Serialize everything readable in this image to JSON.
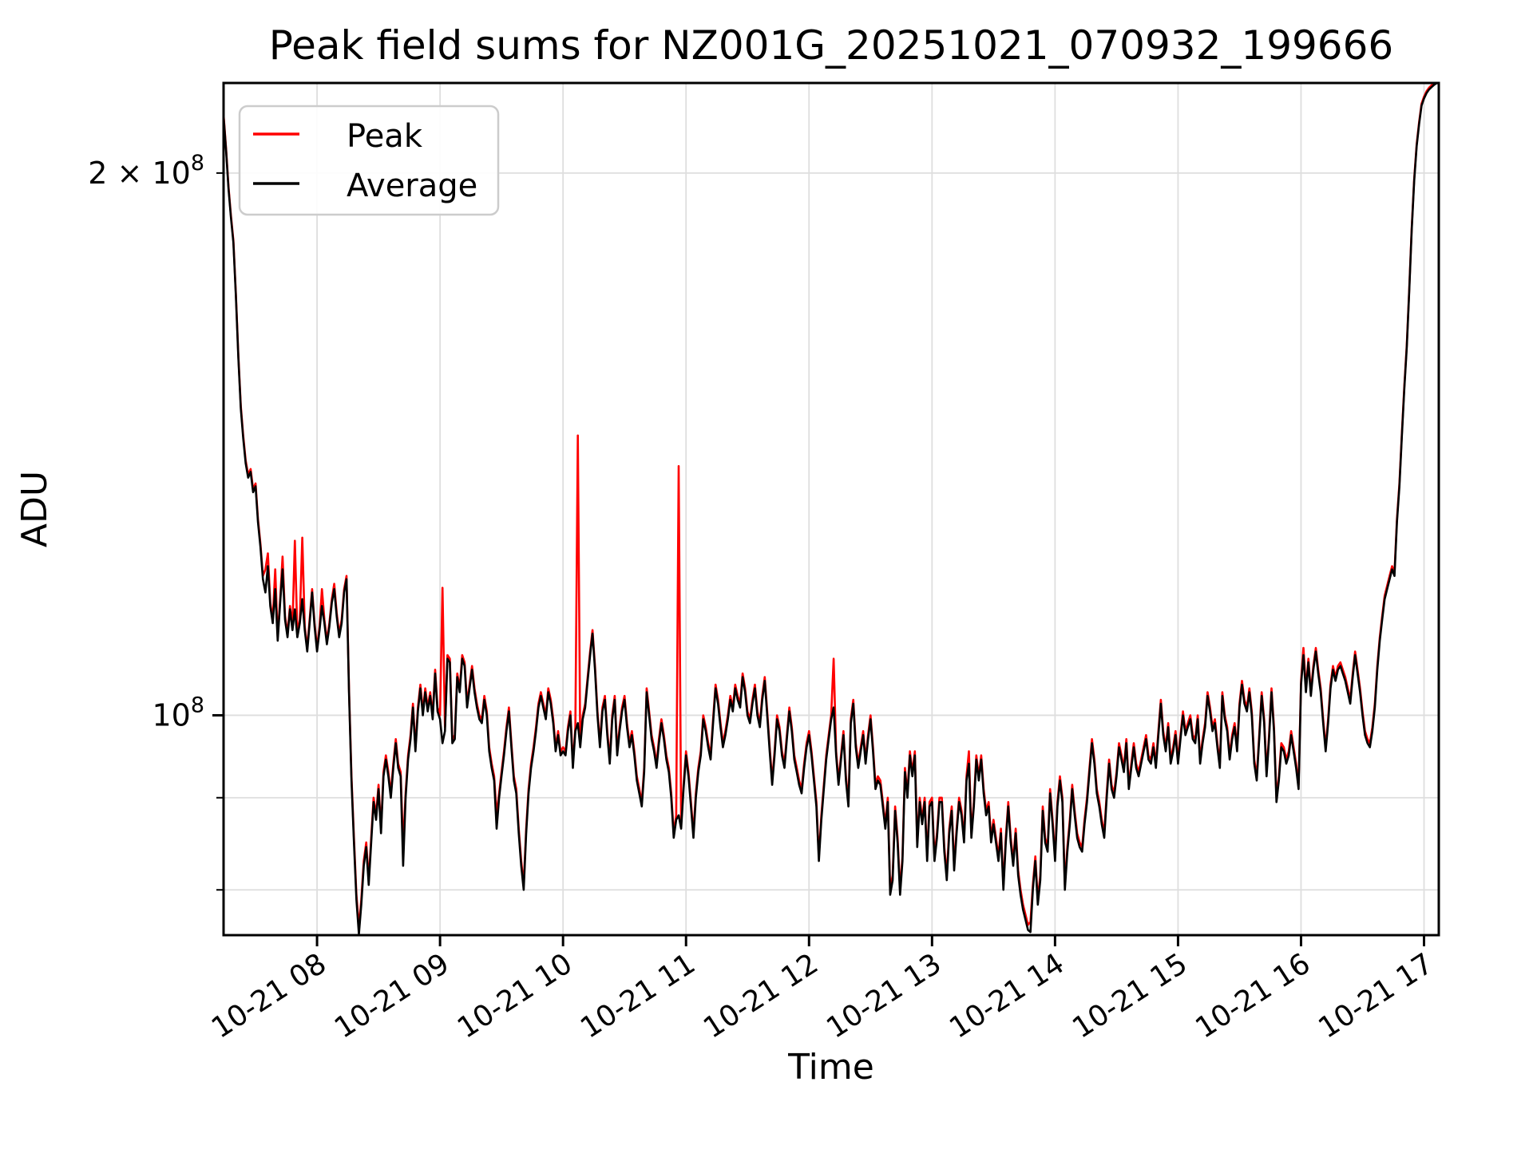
{
  "title": "Peak field sums for NZ001G_20251021_070932_199666",
  "axes": {
    "x_label": "Time",
    "y_label": "ADU"
  },
  "legend": {
    "position": "upper left",
    "items": [
      {
        "label": "Peak",
        "color": "#ff0000"
      },
      {
        "label": "Average",
        "color": "#000000"
      }
    ]
  },
  "colors": {
    "peak": "#ff0000",
    "average": "#000000",
    "grid": "#dedede",
    "spine": "#000000",
    "background": "#ffffff"
  },
  "chart_data": {
    "type": "line",
    "title": "Peak field sums for NZ001G_20251021_070932_199666",
    "xlabel": "Time",
    "ylabel": "ADU",
    "y_scale": "log",
    "grid": true,
    "legend_position": "upper left",
    "value_unit": "ADU",
    "value_scale": 1000000,
    "date": "10-21",
    "xlim_hours": [
      7.24,
      17.12
    ],
    "ylim_millions": [
      75.5,
      224.4
    ],
    "x_ticks": [
      {
        "hour": 8,
        "label": "10-21 08"
      },
      {
        "hour": 9,
        "label": "10-21 09"
      },
      {
        "hour": 10,
        "label": "10-21 10"
      },
      {
        "hour": 11,
        "label": "10-21 11"
      },
      {
        "hour": 12,
        "label": "10-21 12"
      },
      {
        "hour": 13,
        "label": "10-21 13"
      },
      {
        "hour": 14,
        "label": "10-21 14"
      },
      {
        "hour": 15,
        "label": "10-21 15"
      },
      {
        "hour": 16,
        "label": "10-21 16"
      },
      {
        "hour": 17,
        "label": "10-21 17"
      }
    ],
    "y_ticks": [
      {
        "value_millions": 100,
        "prefix": "",
        "base": "10",
        "exp": "8",
        "major": true
      },
      {
        "value_millions": 200,
        "prefix": "2 × ",
        "base": "10",
        "exp": "8",
        "major": false
      }
    ],
    "y_minor_ticks_millions": [
      80,
      90
    ],
    "y_gridlines_millions": [
      80,
      90,
      100,
      200
    ],
    "x_start_hour": 7.24,
    "x_step_hours": 0.02,
    "series": [
      {
        "name": "Peak",
        "color": "#ff0000",
        "values_millions": [
          215.5,
          206.5,
          196.5,
          189.5,
          183.5,
          171.5,
          158.5,
          148.5,
          143,
          138.5,
          136,
          137,
          133.5,
          134.5,
          128.5,
          124.5,
          119.5,
          120.5,
          123,
          115.5,
          113,
          120.5,
          110.5,
          116,
          122.5,
          113.5,
          111,
          115,
          112,
          125,
          111,
          113,
          125.5,
          112,
          109,
          113,
          117.5,
          112.5,
          109,
          112,
          117.5,
          113,
          110,
          112.5,
          116,
          118.3,
          114,
          111,
          113,
          117.5,
          119.5,
          103.5,
          92.5,
          85.5,
          79.5,
          76.3,
          79,
          83,
          85,
          81,
          85.5,
          90,
          88,
          91.5,
          86.5,
          93,
          95,
          93,
          90.5,
          94,
          97,
          94,
          93,
          84.5,
          90.5,
          95,
          97.5,
          101.5,
          96,
          101,
          104,
          100.5,
          103.5,
          101,
          103,
          100,
          106,
          101,
          100,
          117.7,
          98.5,
          108,
          107.5,
          97,
          97.5,
          105.5,
          103.5,
          108,
          107,
          101.5,
          104,
          106.5,
          103.5,
          101.5,
          100,
          99.5,
          102.5,
          100.5,
          96,
          94,
          92.5,
          88,
          90.5,
          93,
          95.5,
          98.5,
          101,
          96.5,
          92.5,
          91,
          86.5,
          83,
          80.5,
          86.5,
          91,
          94,
          96,
          98.5,
          101.5,
          103,
          101.5,
          100,
          103.5,
          102,
          99.5,
          96,
          98,
          95.5,
          96,
          95.5,
          98.5,
          100.5,
          94,
          98.5,
          143,
          96.5,
          100,
          101.5,
          105,
          108.5,
          111.5,
          106.5,
          100.5,
          96.5,
          101,
          102.5,
          98,
          94.5,
          100,
          102.5,
          95.5,
          98.5,
          101,
          102.5,
          99,
          96.5,
          98,
          95.5,
          92.5,
          91,
          89.5,
          93.5,
          103.5,
          100.5,
          97.5,
          96,
          94,
          97,
          99.5,
          97.5,
          95,
          93.5,
          90.5,
          86,
          88,
          137.5,
          87,
          91.5,
          95.5,
          93,
          89.5,
          86,
          90.5,
          93.5,
          95.5,
          100,
          98.5,
          96.5,
          95,
          99.5,
          104,
          102,
          99,
          96.5,
          98,
          100,
          102.5,
          101,
          104,
          102.5,
          101.5,
          105.5,
          103.5,
          100.5,
          99.5,
          102,
          104,
          100.5,
          99,
          102.5,
          105,
          100.5,
          96,
          92,
          95.5,
          100,
          98.5,
          95.5,
          94,
          97.5,
          101,
          98.5,
          95,
          93.5,
          92,
          91,
          94,
          96.5,
          98,
          95.5,
          92.5,
          89.5,
          83.5,
          88,
          91.5,
          95,
          97.5,
          100,
          107.5,
          95.5,
          92,
          95,
          98,
          92.5,
          89.5,
          99.5,
          102,
          96.5,
          94,
          96,
          98,
          94.5,
          97.5,
          100,
          96,
          91.5,
          92.5,
          92,
          89.5,
          87,
          90,
          80,
          81.5,
          89,
          85.5,
          80,
          83.5,
          93.5,
          90.5,
          95.5,
          93,
          95.5,
          85,
          90,
          87.5,
          90,
          83.5,
          89.5,
          90,
          83.5,
          86,
          90,
          90,
          84.5,
          81.5,
          86.5,
          89,
          82.5,
          86.5,
          90,
          88.5,
          85.5,
          92.5,
          95.5,
          86,
          89.5,
          95,
          92.5,
          95,
          91,
          88.5,
          89.5,
          85.5,
          87.5,
          85.5,
          83.5,
          86.5,
          80.5,
          85.5,
          89.5,
          85.5,
          83,
          86.5,
          82,
          80,
          78.5,
          77.5,
          76.5,
          76.8,
          80.5,
          83.5,
          79,
          81.5,
          89,
          85.5,
          84.5,
          91,
          87.5,
          83.5,
          89.5,
          92.5,
          90,
          80.5,
          84.5,
          87.5,
          91.5,
          88.5,
          86,
          85,
          84.5,
          87.5,
          90,
          93.5,
          97,
          94.5,
          91,
          89.5,
          87.5,
          86,
          90.5,
          94.5,
          91.5,
          90.5,
          93,
          96.5,
          95,
          93.5,
          97,
          91.5,
          94,
          96.5,
          94,
          93,
          94.5,
          96,
          97.5,
          95,
          94.5,
          96.5,
          94,
          98,
          102,
          98,
          96,
          99,
          94.5,
          96,
          98,
          94.5,
          97.5,
          100.5,
          98,
          99,
          100,
          97.5,
          97,
          100,
          94.5,
          97,
          99,
          103,
          101,
          98.5,
          99.5,
          96.5,
          94,
          103,
          100,
          98.5,
          95,
          97.5,
          99,
          96,
          101.5,
          104.5,
          102,
          101,
          103.5,
          100.5,
          94.5,
          92.5,
          97.5,
          103,
          99.5,
          93,
          97.5,
          103.5,
          98.5,
          90,
          92.5,
          96.5,
          96,
          94.5,
          95.5,
          98,
          96,
          94,
          91.5,
          104.5,
          109,
          103.5,
          107.5,
          103,
          106.5,
          109,
          106,
          103.5,
          99.5,
          96,
          99.5,
          104,
          106.5,
          105,
          106.5,
          107,
          106,
          105,
          103.5,
          102,
          105.5,
          108.5,
          106,
          103.5,
          100.5,
          98,
          97,
          96.5,
          98.5,
          101.5,
          106.5,
          110.5,
          113.5,
          116.5,
          118,
          119.5,
          121,
          120,
          128.5,
          134.5,
          143.5,
          152.5,
          160.5,
          172.5,
          186.5,
          198.5,
          207.5,
          213.5,
          218.5,
          220.5,
          222,
          223,
          223.7,
          224.2,
          224.5,
          224.7
        ]
      },
      {
        "name": "Average",
        "color": "#000000",
        "values_millions": [
          215,
          206,
          196,
          189,
          183,
          171,
          158,
          148,
          142.5,
          138,
          135.5,
          136.5,
          133,
          134,
          128,
          124,
          119,
          117,
          121,
          115,
          112.5,
          117.5,
          110,
          115.5,
          120.5,
          113,
          110.5,
          114.5,
          111.5,
          114.5,
          110.5,
          112.5,
          116,
          111.5,
          108.5,
          112.5,
          117,
          112,
          108.5,
          111.5,
          115,
          112.5,
          109.5,
          112,
          115.5,
          117.5,
          113.5,
          110.5,
          112.5,
          117,
          119,
          103,
          92,
          85,
          79,
          75.6,
          78.5,
          82.5,
          84.5,
          80.5,
          85,
          89.5,
          87.5,
          91,
          86,
          92.5,
          94.5,
          92.5,
          90,
          93.5,
          96.5,
          93.5,
          92.5,
          82.5,
          90,
          94.5,
          97,
          101,
          95.5,
          100.5,
          103.5,
          100,
          103,
          100.5,
          102.5,
          99.5,
          105.5,
          100.5,
          99.5,
          96.5,
          98,
          107.5,
          107,
          96.5,
          97,
          105,
          103,
          107.5,
          106.5,
          101,
          103.5,
          106,
          103,
          101,
          99.5,
          99,
          102,
          100,
          95.5,
          93.5,
          92,
          86.5,
          90,
          92.5,
          95,
          98,
          100.5,
          96,
          92,
          90.5,
          86,
          82.5,
          80,
          86,
          90.5,
          93.5,
          95.5,
          98,
          101,
          102.5,
          101,
          99.5,
          103,
          101.5,
          99,
          95.5,
          97.5,
          95,
          95.5,
          95,
          98,
          100,
          93.5,
          98,
          99,
          96,
          99.5,
          101,
          104.5,
          108,
          111,
          106,
          100,
          96,
          100.5,
          102,
          97.5,
          94,
          99.5,
          102,
          95,
          98,
          100.5,
          102,
          98.5,
          96,
          97.5,
          95,
          92,
          90.5,
          89,
          93,
          103,
          100,
          97,
          95.5,
          93.5,
          96.5,
          99,
          97,
          94.5,
          93,
          90,
          85.5,
          87.5,
          88,
          86.5,
          91,
          95,
          92.5,
          89,
          85.5,
          90,
          93,
          95,
          99.5,
          98,
          96,
          94.5,
          99,
          103.5,
          101.5,
          98.5,
          96,
          97.5,
          99.5,
          102,
          100.5,
          103.5,
          102,
          101,
          105,
          103,
          100,
          99,
          101.5,
          103.5,
          100,
          98.5,
          102,
          104.5,
          100,
          95.5,
          91.5,
          95,
          99.5,
          98,
          95,
          93.5,
          97,
          100.5,
          98,
          94.5,
          93,
          91.5,
          90.5,
          93.5,
          96,
          97.5,
          95,
          92,
          89,
          83,
          87.5,
          91,
          94.5,
          97,
          99.5,
          101,
          95,
          91.5,
          94.5,
          97.5,
          92,
          89,
          99,
          101.5,
          96,
          93.5,
          95.5,
          97.5,
          94,
          97,
          99.5,
          95.5,
          91,
          92,
          91.5,
          89,
          86.5,
          89.5,
          79.5,
          81,
          88.5,
          85,
          79.5,
          83,
          93,
          90,
          95,
          92.5,
          95,
          84.5,
          89.5,
          87,
          89.5,
          83,
          89,
          89.5,
          83,
          85.5,
          89.5,
          89.5,
          84,
          81,
          86,
          88.5,
          82,
          86,
          89.5,
          88,
          85,
          92,
          94,
          85.5,
          89,
          94.5,
          92,
          94.5,
          90.5,
          88,
          89,
          85,
          87,
          85,
          83,
          86,
          80,
          85,
          89,
          85,
          82.5,
          86,
          81.5,
          79.5,
          78,
          77,
          76,
          75.8,
          80,
          83,
          78.5,
          81,
          88.5,
          85,
          84,
          90.5,
          87,
          83,
          89,
          92,
          89.5,
          80,
          84,
          87,
          91,
          88,
          85.5,
          84.5,
          84,
          87,
          89.5,
          93,
          96.5,
          94,
          90.5,
          89,
          87,
          85.5,
          90,
          94,
          91,
          90,
          92.5,
          96,
          94.5,
          93,
          96.5,
          91,
          93.5,
          96,
          93.5,
          92.5,
          94,
          95.5,
          97,
          94.5,
          94,
          96,
          93.5,
          97.5,
          101.5,
          97.5,
          95.5,
          98.5,
          94,
          95.5,
          97.5,
          94,
          97,
          100,
          97.5,
          98.5,
          99.5,
          97,
          96.5,
          99.5,
          94,
          96.5,
          98.5,
          102.5,
          100.5,
          98,
          99,
          96,
          93.5,
          102.5,
          99.5,
          98,
          94.5,
          97,
          98.5,
          95.5,
          101,
          104,
          101.5,
          100.5,
          103,
          100,
          94,
          92,
          97,
          102.5,
          99,
          92.5,
          97,
          103,
          98,
          89.5,
          92,
          96,
          95.5,
          94,
          95,
          97.5,
          95.5,
          93.5,
          91,
          104,
          108,
          103,
          107,
          102.5,
          106,
          108.5,
          105.5,
          103,
          99,
          95.5,
          99,
          103.5,
          106,
          104.5,
          106,
          106.5,
          105.5,
          104.5,
          103,
          101.5,
          105,
          108,
          105.5,
          103,
          100,
          97.5,
          96.5,
          96,
          98,
          101,
          106,
          110,
          113,
          116,
          117.5,
          119,
          120.5,
          119.5,
          128,
          134,
          143,
          152,
          160,
          172,
          186,
          198,
          207,
          213,
          218,
          220,
          221.5,
          222.5,
          223.2,
          223.8,
          224.3,
          224.4
        ]
      }
    ]
  }
}
